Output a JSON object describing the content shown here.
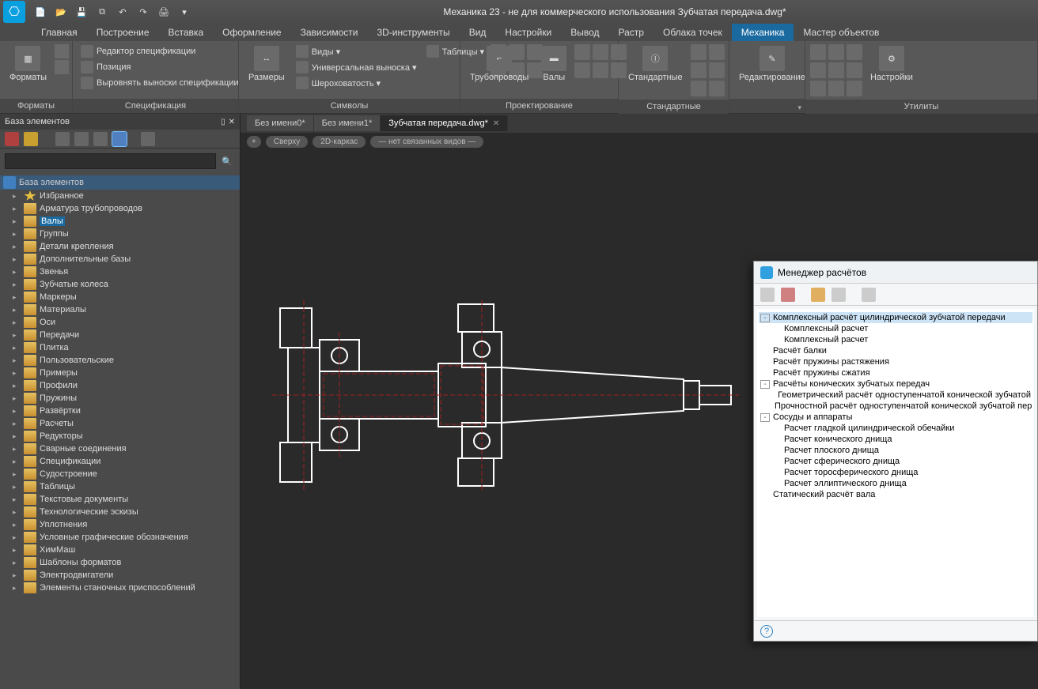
{
  "app_title": "Механика 23 - не для коммерческого использования Зубчатая передача.dwg*",
  "menu_tabs": [
    "Главная",
    "Построение",
    "Вставка",
    "Оформление",
    "Зависимости",
    "3D-инструменты",
    "Вид",
    "Настройки",
    "Вывод",
    "Растр",
    "Облака точек",
    "Механика",
    "Мастер объектов"
  ],
  "menu_active": 11,
  "ribbon": {
    "formats": {
      "big": "Форматы",
      "title": "Форматы"
    },
    "spec": {
      "lines": [
        "Редактор спецификации",
        "Позиция",
        "Выровнять выноски спецификации"
      ],
      "title": "Спецификация"
    },
    "symbols": {
      "big": "Размеры",
      "col": [
        "Виды",
        "Универсальная выноска",
        "Шероховатость"
      ],
      "col2": [
        "Таблицы"
      ],
      "title": "Символы"
    },
    "design": {
      "b1": "Трубопроводы",
      "b2": "Валы",
      "title": "Проектирование"
    },
    "std": {
      "big": "Стандартные",
      "title": "Стандартные"
    },
    "edit": {
      "big": "Редактирование",
      "title": ""
    },
    "util": {
      "big": "Настройки",
      "title": "Утилиты"
    }
  },
  "left": {
    "title": "База элементов",
    "search_placeholder": "",
    "root": "База элементов",
    "items": [
      {
        "label": "Избранное",
        "star": true
      },
      {
        "label": "Арматура трубопроводов"
      },
      {
        "label": "Валы",
        "sel": true
      },
      {
        "label": "Группы"
      },
      {
        "label": "Детали крепления"
      },
      {
        "label": "Дополнительные базы"
      },
      {
        "label": "Звенья"
      },
      {
        "label": "Зубчатые колеса"
      },
      {
        "label": "Маркеры"
      },
      {
        "label": "Материалы"
      },
      {
        "label": "Оси"
      },
      {
        "label": "Передачи"
      },
      {
        "label": "Плитка"
      },
      {
        "label": "Пользовательские"
      },
      {
        "label": "Примеры"
      },
      {
        "label": "Профили"
      },
      {
        "label": "Пружины"
      },
      {
        "label": "Развёртки"
      },
      {
        "label": "Расчеты"
      },
      {
        "label": "Редукторы"
      },
      {
        "label": "Сварные соединения"
      },
      {
        "label": "Спецификации"
      },
      {
        "label": "Судостроение"
      },
      {
        "label": "Таблицы"
      },
      {
        "label": "Текстовые документы"
      },
      {
        "label": "Технологические эскизы"
      },
      {
        "label": "Уплотнения"
      },
      {
        "label": "Условные графические обозначения"
      },
      {
        "label": "ХимМаш"
      },
      {
        "label": "Шаблоны форматов"
      },
      {
        "label": "Электродвигатели"
      },
      {
        "label": "Элементы станочных приспособлений"
      }
    ]
  },
  "doctabs": [
    {
      "label": "Без имени0*"
    },
    {
      "label": "Без имени1*"
    },
    {
      "label": "Зубчатая передача.dwg*",
      "active": true
    }
  ],
  "pills": [
    "+",
    "Сверху",
    "2D-каркас",
    "— нет связанных видов —"
  ],
  "canvas_label": "Комплексный расчет",
  "calc": {
    "title": "Менеджер расчётов",
    "tree": [
      {
        "l": 0,
        "ex": "-",
        "t": "Комплексный расчёт цилиндрической зубчатой передачи",
        "sel": true
      },
      {
        "l": 1,
        "ex": "·",
        "t": "Комплексный расчет"
      },
      {
        "l": 1,
        "ex": "·",
        "t": "Комплексный расчет"
      },
      {
        "l": 0,
        "ex": " ",
        "t": "Расчёт балки"
      },
      {
        "l": 0,
        "ex": " ",
        "t": "Расчёт пружины растяжения"
      },
      {
        "l": 0,
        "ex": " ",
        "t": "Расчёт пружины сжатия"
      },
      {
        "l": 0,
        "ex": "-",
        "t": "Расчёты конических зубчатых передач"
      },
      {
        "l": 1,
        "ex": "·",
        "t": "Геометрический расчёт одноступенчатой конической зубчатой"
      },
      {
        "l": 1,
        "ex": "·",
        "t": "Прочностной расчёт одноступенчатой конической зубчатой пер"
      },
      {
        "l": 0,
        "ex": "-",
        "t": "Сосуды и аппараты"
      },
      {
        "l": 1,
        "ex": "·",
        "t": "Расчет гладкой цилиндрической обечайки"
      },
      {
        "l": 1,
        "ex": "·",
        "t": "Расчет конического днища"
      },
      {
        "l": 1,
        "ex": "·",
        "t": "Расчет плоского днища"
      },
      {
        "l": 1,
        "ex": "·",
        "t": "Расчет сферического днища"
      },
      {
        "l": 1,
        "ex": "·",
        "t": "Расчет торосферического днища"
      },
      {
        "l": 1,
        "ex": "·",
        "t": "Расчет эллиптического днища"
      },
      {
        "l": 0,
        "ex": " ",
        "t": "Статический расчёт вала"
      }
    ]
  },
  "drawing": {
    "stroke": "#ffffff",
    "hidden": "#a02020",
    "bg": "#2a2a2a"
  }
}
